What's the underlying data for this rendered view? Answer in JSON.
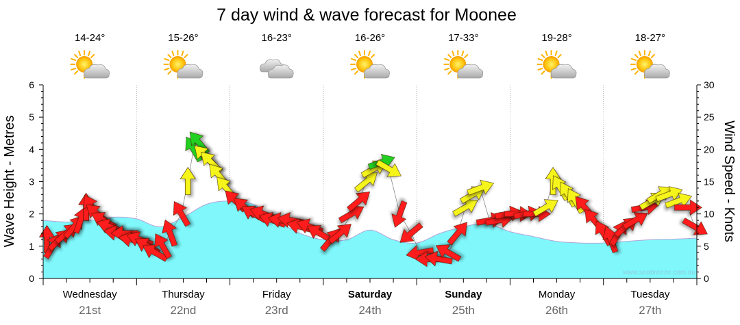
{
  "colors": {
    "wave_fill": "#7ff7fb",
    "wave_stroke": "#b4a4d8",
    "arrow_red": "#ff1a1a",
    "arrow_yellow": "#f5f51a",
    "arrow_green": "#20d020",
    "grid": "#a0a0a0"
  },
  "chart_data": {
    "type": "area",
    "title": "7 day wind & wave forecast for Moonee",
    "ylabel": "Wave Height - Metres",
    "ylabel_right": "Wind Speed - Knots",
    "ylim": [
      0,
      6
    ],
    "ylim_right": [
      0,
      30
    ],
    "yticks": [
      "0",
      "1",
      "2",
      "3",
      "4",
      "5",
      "6"
    ],
    "yticks_right": [
      "0",
      "5",
      "10",
      "15",
      "20",
      "25",
      "30"
    ],
    "credit": "www.seabreeze.com.au",
    "days": [
      {
        "name": "Wednesday",
        "date": "21st",
        "temp": "14-24°",
        "icon": "sun-cloud-icon",
        "bold": false
      },
      {
        "name": "Thursday",
        "date": "22nd",
        "temp": "15-26°",
        "icon": "sun-cloud-icon",
        "bold": false
      },
      {
        "name": "Friday",
        "date": "23rd",
        "temp": "16-23°",
        "icon": "cloud-icon",
        "bold": false
      },
      {
        "name": "Saturday",
        "date": "24th",
        "temp": "16-26°",
        "icon": "sun-cloud-icon",
        "bold": true
      },
      {
        "name": "Sunday",
        "date": "25th",
        "temp": "17-33°",
        "icon": "sun-cloud-icon",
        "bold": true
      },
      {
        "name": "Monday",
        "date": "26th",
        "temp": "19-28°",
        "icon": "sun-cloud-icon",
        "bold": false
      },
      {
        "name": "Tuesday",
        "date": "27th",
        "temp": "18-27°",
        "icon": "sun-cloud-icon",
        "bold": false
      }
    ],
    "wave_series": {
      "name": "Wave height",
      "unit": "days since start",
      "x": [
        0,
        0.25,
        0.5,
        0.75,
        1.0,
        1.25,
        1.5,
        1.75,
        2.0,
        2.25,
        2.5,
        2.75,
        3.0,
        3.25,
        3.5,
        3.75,
        4.0,
        4.25,
        4.5,
        4.75,
        5.0,
        5.25,
        5.5,
        5.75,
        6.0,
        6.25,
        6.5,
        6.75,
        7.0
      ],
      "y": [
        1.8,
        1.75,
        1.8,
        1.9,
        1.85,
        1.6,
        1.9,
        2.3,
        2.4,
        2.3,
        1.8,
        1.4,
        1.2,
        1.2,
        1.5,
        1.2,
        1.1,
        1.4,
        1.6,
        1.7,
        1.45,
        1.3,
        1.15,
        1.1,
        1.1,
        1.15,
        1.2,
        1.22,
        1.25
      ]
    },
    "wind_series": [
      {
        "x": 0.04,
        "knots": 6,
        "dir": 0,
        "color": "red"
      },
      {
        "x": 0.1,
        "knots": 5,
        "dir": 30,
        "color": "red"
      },
      {
        "x": 0.17,
        "knots": 6,
        "dir": 45,
        "color": "red"
      },
      {
        "x": 0.25,
        "knots": 7,
        "dir": 50,
        "color": "red"
      },
      {
        "x": 0.33,
        "knots": 8,
        "dir": 40,
        "color": "red"
      },
      {
        "x": 0.4,
        "knots": 9,
        "dir": 20,
        "color": "red"
      },
      {
        "x": 0.46,
        "knots": 11,
        "dir": 0,
        "color": "red"
      },
      {
        "x": 0.52,
        "knots": 11,
        "dir": 330,
        "color": "red"
      },
      {
        "x": 0.58,
        "knots": 10,
        "dir": 310,
        "color": "red"
      },
      {
        "x": 0.65,
        "knots": 9,
        "dir": 300,
        "color": "red"
      },
      {
        "x": 0.72,
        "knots": 8,
        "dir": 290,
        "color": "red"
      },
      {
        "x": 0.8,
        "knots": 7,
        "dir": 280,
        "color": "red"
      },
      {
        "x": 0.88,
        "knots": 7,
        "dir": 270,
        "color": "red"
      },
      {
        "x": 0.96,
        "knots": 6,
        "dir": 280,
        "color": "red"
      },
      {
        "x": 1.04,
        "knots": 6,
        "dir": 290,
        "color": "red"
      },
      {
        "x": 1.12,
        "knots": 5,
        "dir": 300,
        "color": "red"
      },
      {
        "x": 1.2,
        "knots": 4,
        "dir": 300,
        "color": "red"
      },
      {
        "x": 1.28,
        "knots": 5,
        "dir": 330,
        "color": "red"
      },
      {
        "x": 1.36,
        "knots": 7,
        "dir": 340,
        "color": "red"
      },
      {
        "x": 1.48,
        "knots": 10,
        "dir": 330,
        "color": "red"
      },
      {
        "x": 1.55,
        "knots": 15,
        "dir": 0,
        "color": "yellow"
      },
      {
        "x": 1.61,
        "knots": 20,
        "dir": 330,
        "color": "green"
      },
      {
        "x": 1.67,
        "knots": 21,
        "dir": 320,
        "color": "green"
      },
      {
        "x": 1.73,
        "knots": 19,
        "dir": 315,
        "color": "yellow"
      },
      {
        "x": 1.8,
        "knots": 18,
        "dir": 315,
        "color": "yellow"
      },
      {
        "x": 1.88,
        "knots": 16,
        "dir": 320,
        "color": "yellow"
      },
      {
        "x": 1.96,
        "knots": 14,
        "dir": 320,
        "color": "yellow"
      },
      {
        "x": 2.06,
        "knots": 12,
        "dir": 315,
        "color": "red"
      },
      {
        "x": 2.16,
        "knots": 11,
        "dir": 310,
        "color": "red"
      },
      {
        "x": 2.26,
        "knots": 10,
        "dir": 300,
        "color": "red"
      },
      {
        "x": 2.36,
        "knots": 10,
        "dir": 290,
        "color": "red"
      },
      {
        "x": 2.46,
        "knots": 9,
        "dir": 290,
        "color": "red"
      },
      {
        "x": 2.56,
        "knots": 9,
        "dir": 280,
        "color": "red"
      },
      {
        "x": 2.66,
        "knots": 9,
        "dir": 280,
        "color": "red"
      },
      {
        "x": 2.76,
        "knots": 8,
        "dir": 285,
        "color": "red"
      },
      {
        "x": 2.86,
        "knots": 8,
        "dir": 290,
        "color": "red"
      },
      {
        "x": 2.96,
        "knots": 7,
        "dir": 300,
        "color": "red"
      },
      {
        "x": 3.08,
        "knots": 6,
        "dir": 40,
        "color": "red"
      },
      {
        "x": 3.18,
        "knots": 7,
        "dir": 50,
        "color": "red"
      },
      {
        "x": 3.3,
        "knots": 10,
        "dir": 60,
        "color": "red"
      },
      {
        "x": 3.38,
        "knots": 12,
        "dir": 50,
        "color": "red"
      },
      {
        "x": 3.46,
        "knots": 15,
        "dir": 50,
        "color": "yellow"
      },
      {
        "x": 3.54,
        "knots": 17,
        "dir": 60,
        "color": "yellow"
      },
      {
        "x": 3.62,
        "knots": 18,
        "dir": 70,
        "color": "green"
      },
      {
        "x": 3.7,
        "knots": 17,
        "dir": 120,
        "color": "yellow"
      },
      {
        "x": 3.82,
        "knots": 10,
        "dir": 200,
        "color": "red"
      },
      {
        "x": 3.94,
        "knots": 7,
        "dir": 230,
        "color": "red"
      },
      {
        "x": 4.04,
        "knots": 4,
        "dir": 260,
        "color": "red"
      },
      {
        "x": 4.14,
        "knots": 3,
        "dir": 270,
        "color": "red"
      },
      {
        "x": 4.24,
        "knots": 3,
        "dir": 280,
        "color": "red"
      },
      {
        "x": 4.34,
        "knots": 4,
        "dir": 300,
        "color": "red"
      },
      {
        "x": 4.44,
        "knots": 7,
        "dir": 40,
        "color": "red"
      },
      {
        "x": 4.52,
        "knots": 11,
        "dir": 60,
        "color": "yellow"
      },
      {
        "x": 4.6,
        "knots": 13,
        "dir": 60,
        "color": "yellow"
      },
      {
        "x": 4.68,
        "knots": 14,
        "dir": 70,
        "color": "yellow"
      },
      {
        "x": 4.78,
        "knots": 9,
        "dir": 80,
        "color": "red"
      },
      {
        "x": 4.88,
        "knots": 9,
        "dir": 80,
        "color": "red"
      },
      {
        "x": 4.98,
        "knots": 10,
        "dir": 80,
        "color": "red"
      },
      {
        "x": 5.08,
        "knots": 10,
        "dir": 90,
        "color": "red"
      },
      {
        "x": 5.18,
        "knots": 10,
        "dir": 80,
        "color": "red"
      },
      {
        "x": 5.28,
        "knots": 10,
        "dir": 90,
        "color": "red"
      },
      {
        "x": 5.38,
        "knots": 11,
        "dir": 60,
        "color": "yellow"
      },
      {
        "x": 5.46,
        "knots": 15,
        "dir": 0,
        "color": "yellow"
      },
      {
        "x": 5.54,
        "knots": 14,
        "dir": 330,
        "color": "yellow"
      },
      {
        "x": 5.62,
        "knots": 13,
        "dir": 330,
        "color": "yellow"
      },
      {
        "x": 5.7,
        "knots": 12,
        "dir": 330,
        "color": "yellow"
      },
      {
        "x": 5.8,
        "knots": 11,
        "dir": 320,
        "color": "red"
      },
      {
        "x": 5.9,
        "knots": 9,
        "dir": 320,
        "color": "red"
      },
      {
        "x": 6.0,
        "knots": 7,
        "dir": 330,
        "color": "red"
      },
      {
        "x": 6.08,
        "knots": 6,
        "dir": 340,
        "color": "red"
      },
      {
        "x": 6.16,
        "knots": 7,
        "dir": 30,
        "color": "red"
      },
      {
        "x": 6.24,
        "knots": 8,
        "dir": 50,
        "color": "red"
      },
      {
        "x": 6.34,
        "knots": 9,
        "dir": 60,
        "color": "red"
      },
      {
        "x": 6.44,
        "knots": 11,
        "dir": 80,
        "color": "red"
      },
      {
        "x": 6.52,
        "knots": 12,
        "dir": 60,
        "color": "yellow"
      },
      {
        "x": 6.6,
        "knots": 13,
        "dir": 60,
        "color": "yellow"
      },
      {
        "x": 6.7,
        "knots": 13,
        "dir": 70,
        "color": "yellow"
      },
      {
        "x": 6.8,
        "knots": 12,
        "dir": 70,
        "color": "yellow"
      },
      {
        "x": 6.9,
        "knots": 11,
        "dir": 90,
        "color": "red"
      },
      {
        "x": 6.98,
        "knots": 8,
        "dir": 120,
        "color": "red"
      }
    ]
  }
}
